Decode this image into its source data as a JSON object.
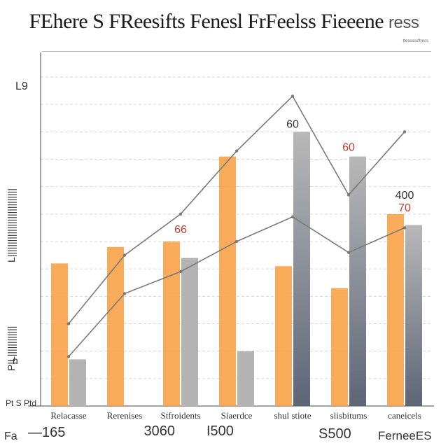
{
  "title": "FEhere S FReesifts Fenesl FrFeelss Fieeene",
  "title_tail": "ress",
  "corner_note": "ttesssscftress",
  "y_axis_top": "L9",
  "y_axis_label_upper": "L|||||||||||||||||||||||||||",
  "y_axis_label_lower": "P|L||||||||||||",
  "y_axis_mid": "n",
  "y_axis_small": "Pt S Ptd",
  "footer": {
    "left_prefix": "Fa",
    "left": "—165",
    "mid1": " 3060",
    "mid2": "I500",
    "mid3": "S500",
    "right": "FerneeES"
  },
  "chart_data": {
    "type": "bar",
    "categories": [
      "Relacasse",
      "Rerenises",
      "Stfroidents",
      "Siaerdce",
      "shul stiote",
      "slisbitums",
      "caneicels"
    ],
    "ylim": [
      0,
      120
    ],
    "grid": true,
    "series": [
      {
        "name": "",
        "color": "#f8a44c",
        "values": [
          52,
          58,
          60,
          91,
          51,
          43,
          70
        ]
      },
      {
        "name": "",
        "color": "#b3b3b3",
        "values": [
          17,
          0,
          54,
          20,
          100,
          91,
          66
        ]
      }
    ],
    "lines": [
      {
        "color": "#7a7a7a",
        "values": [
          30,
          55,
          70,
          93,
          113,
          77,
          100
        ]
      },
      {
        "color": "#7a7a7a",
        "values": [
          18,
          41,
          49,
          60,
          69,
          56,
          65
        ]
      }
    ],
    "data_labels": [
      "60",
      "60",
      "400",
      "66",
      "70"
    ],
    "colors": {
      "orange": "#f8a44c",
      "gray": "#b3b3b3",
      "dark": "#6d7382",
      "line": "#7a7a7a"
    }
  }
}
